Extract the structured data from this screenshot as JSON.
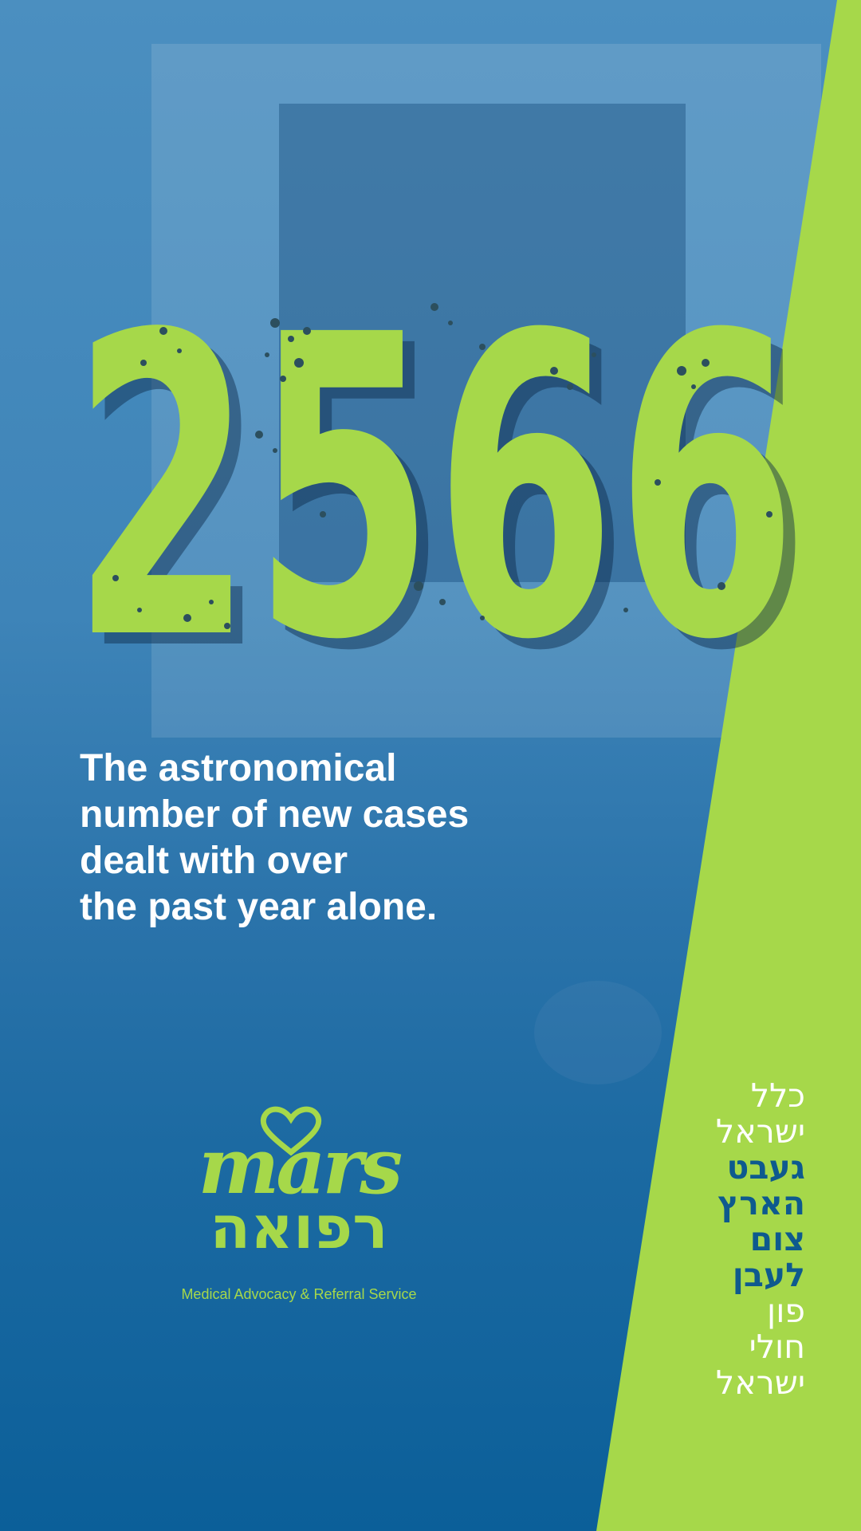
{
  "colors": {
    "background": "#0f5c93",
    "accent_green": "#a6d84a",
    "dark_blue": "#0e5a8e",
    "white": "#ffffff"
  },
  "headline_number": "2566",
  "caption": {
    "lines": [
      "The astronomical",
      "number of new cases",
      "dealt with over",
      "the past year alone."
    ]
  },
  "logo": {
    "icon": "heart-icon",
    "wordmark": "mars",
    "hebrew": "רפואה",
    "tagline": "Medical Advocacy & Referral Service"
  },
  "hebrew_list": [
    {
      "text": "כלל",
      "style": "w"
    },
    {
      "text": "ישראל",
      "style": "w"
    },
    {
      "text": "געבט",
      "style": "b"
    },
    {
      "text": "הארץ",
      "style": "b"
    },
    {
      "text": "צום",
      "style": "b"
    },
    {
      "text": "לעבן",
      "style": "b"
    },
    {
      "text": "פון",
      "style": "w"
    },
    {
      "text": "חולי",
      "style": "w"
    },
    {
      "text": "ישראל",
      "style": "w"
    }
  ]
}
